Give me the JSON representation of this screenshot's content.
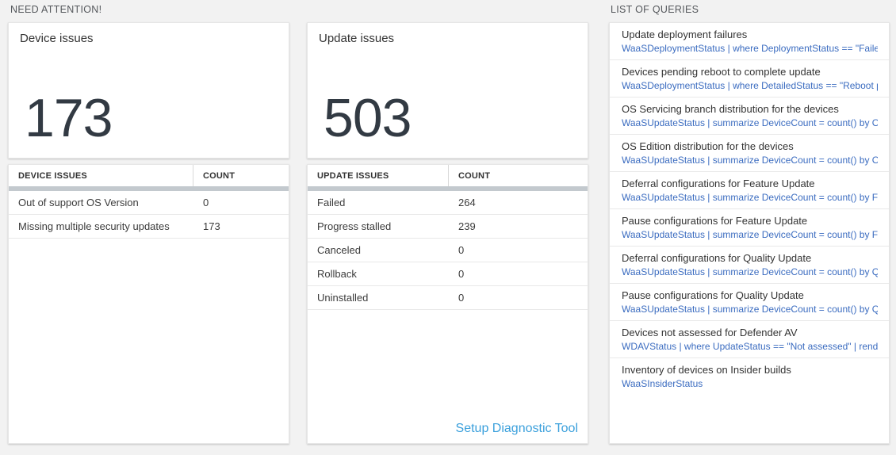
{
  "colors": {
    "background": "#f2f2f2",
    "tile_number": "#323a43",
    "query_text_blue": "#3b6cc0",
    "link_blue": "#3ba0dc",
    "table_scrollbar_gray": "#c3c9ce"
  },
  "need_attention": {
    "header": "NEED ATTENTION!",
    "tiles": [
      {
        "title": "Device issues",
        "big_number": "173",
        "table": {
          "col1": "DEVICE ISSUES",
          "col2": "COUNT",
          "rows": [
            {
              "label": "Out of support OS Version",
              "count": "0"
            },
            {
              "label": "Missing multiple security updates",
              "count": "173"
            }
          ]
        }
      },
      {
        "title": "Update issues",
        "big_number": "503",
        "table": {
          "col1": "UPDATE ISSUES",
          "col2": "COUNT",
          "rows": [
            {
              "label": "Failed",
              "count": "264"
            },
            {
              "label": "Progress stalled",
              "count": "239"
            },
            {
              "label": "Canceled",
              "count": "0"
            },
            {
              "label": "Rollback",
              "count": "0"
            },
            {
              "label": "Uninstalled",
              "count": "0"
            }
          ]
        },
        "footer_link": "Setup Diagnostic Tool"
      }
    ]
  },
  "queries_panel": {
    "header": "LIST OF QUERIES",
    "items": [
      {
        "title": "Update deployment failures",
        "query": "WaaSDeploymentStatus | where DeploymentStatus == \"Failed\" |..."
      },
      {
        "title": "Devices pending reboot to complete update",
        "query": "WaaSDeploymentStatus | where DetailedStatus == \"Reboot pend..."
      },
      {
        "title": "OS Servicing branch distribution for the devices",
        "query": "WaaSUpdateStatus | summarize DeviceCount = count() by OSSer..."
      },
      {
        "title": "OS Edition distribution for the devices",
        "query": "WaaSUpdateStatus | summarize DeviceCount = count() by OSEdit..."
      },
      {
        "title": "Deferral configurations for Feature Update",
        "query": "WaaSUpdateStatus | summarize DeviceCount = count() by Featur..."
      },
      {
        "title": "Pause configurations for Feature Update",
        "query": "WaaSUpdateStatus | summarize DeviceCount = count() by Featur..."
      },
      {
        "title": "Deferral configurations for Quality Update",
        "query": "WaaSUpdateStatus | summarize DeviceCount = count() by Qualit..."
      },
      {
        "title": "Pause configurations for Quality Update",
        "query": "WaaSUpdateStatus | summarize DeviceCount = count() by Qualit..."
      },
      {
        "title": "Devices not assessed for Defender AV",
        "query": "WDAVStatus | where UpdateStatus == \"Not assessed\" | render ta..."
      },
      {
        "title": "Inventory of devices on Insider builds",
        "query": "WaaSInsiderStatus"
      }
    ]
  }
}
